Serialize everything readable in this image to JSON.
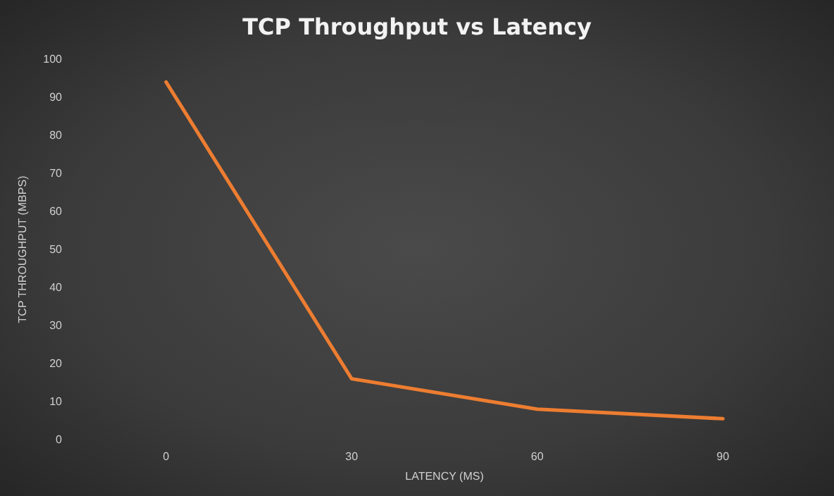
{
  "chart_data": {
    "type": "line",
    "title": "TCP Throughput vs Latency",
    "xlabel": "LATENCY (MS)",
    "ylabel": "TCP THROUGHPUT (MBPS)",
    "categories": [
      "0",
      "30",
      "60",
      "90"
    ],
    "series": [
      {
        "color": "#ed7d31",
        "values": [
          94,
          16,
          8,
          5.5
        ]
      }
    ],
    "ylim": [
      0,
      100
    ],
    "yticks": [
      0,
      10,
      20,
      30,
      40,
      50,
      60,
      70,
      80,
      90,
      100
    ],
    "grid": false,
    "marker": "none",
    "line_style": "solid"
  }
}
